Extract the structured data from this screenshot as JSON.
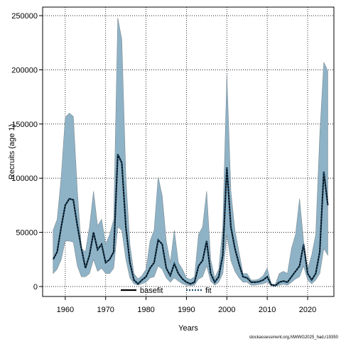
{
  "chart_data": {
    "type": "line",
    "xlabel": "Years",
    "ylabel": "Recruits (age 1)",
    "note": "stockassessment.org,NWWG2025_had,r19350",
    "x": [
      1957,
      1958,
      1959,
      1960,
      1961,
      1962,
      1963,
      1964,
      1965,
      1966,
      1967,
      1968,
      1969,
      1970,
      1971,
      1972,
      1973,
      1974,
      1975,
      1976,
      1977,
      1978,
      1979,
      1980,
      1981,
      1982,
      1983,
      1984,
      1985,
      1986,
      1987,
      1988,
      1989,
      1990,
      1991,
      1992,
      1993,
      1994,
      1995,
      1996,
      1997,
      1998,
      1999,
      2000,
      2001,
      2002,
      2003,
      2004,
      2005,
      2006,
      2007,
      2008,
      2009,
      2010,
      2011,
      2012,
      2013,
      2014,
      2015,
      2016,
      2017,
      2018,
      2019,
      2020,
      2021,
      2022,
      2023,
      2024,
      2025
    ],
    "series": [
      {
        "name": "basefit",
        "color": "#000000",
        "style": "solid",
        "values": [
          25000,
          32000,
          55000,
          75000,
          81000,
          80000,
          56000,
          35000,
          17000,
          29000,
          50000,
          34000,
          39000,
          22000,
          25000,
          32000,
          122000,
          114000,
          55000,
          22000,
          6000,
          2500,
          6000,
          9000,
          17000,
          22000,
          43000,
          39000,
          17000,
          10000,
          21000,
          12000,
          7000,
          4000,
          2500,
          4000,
          19000,
          24000,
          42000,
          12000,
          4000,
          9000,
          29000,
          110000,
          55000,
          35000,
          21000,
          9000,
          8000,
          4000,
          4000,
          4500,
          6000,
          9000,
          1500,
          800,
          4000,
          5000,
          4000,
          9000,
          14000,
          19000,
          39000,
          12000,
          6000,
          12000,
          32000,
          106000,
          75000
        ]
      },
      {
        "name": "fit",
        "color": "#1f4e6e",
        "style": "dotted",
        "band_color": "#8fb3c6",
        "values": [
          25000,
          32000,
          55000,
          75000,
          81000,
          80000,
          56000,
          35000,
          17000,
          29000,
          50000,
          34000,
          39000,
          22000,
          25000,
          32000,
          122000,
          114000,
          55000,
          22000,
          6000,
          2500,
          6000,
          9000,
          17000,
          22000,
          43000,
          39000,
          17000,
          10000,
          21000,
          12000,
          7000,
          4000,
          2500,
          4000,
          19000,
          24000,
          42000,
          12000,
          4000,
          9000,
          29000,
          110000,
          55000,
          35000,
          21000,
          9000,
          8000,
          4000,
          4000,
          4500,
          6000,
          9000,
          1500,
          800,
          4000,
          5000,
          4000,
          9000,
          14000,
          19000,
          39000,
          12000,
          6000,
          12000,
          32000,
          106000,
          75000
        ],
        "upper": [
          52000,
          62000,
          101000,
          156000,
          160000,
          157000,
          88000,
          35000,
          32000,
          55000,
          88000,
          56000,
          62000,
          39000,
          48000,
          62000,
          248000,
          228000,
          101000,
          39000,
          12000,
          7000,
          10000,
          16000,
          42000,
          52000,
          101000,
          84000,
          42000,
          22000,
          52000,
          22000,
          16000,
          8000,
          6500,
          9000,
          48000,
          55000,
          88000,
          25000,
          8000,
          16000,
          55000,
          196000,
          88000,
          52000,
          32000,
          12000,
          12000,
          6000,
          6000,
          7000,
          10000,
          17000,
          2500,
          2000,
          12000,
          14000,
          12000,
          35000,
          48000,
          81000,
          42000,
          16000,
          29000,
          48000,
          140000,
          207000,
          199000
        ],
        "lower": [
          12000,
          16000,
          25000,
          42000,
          42000,
          41000,
          19000,
          9000,
          9000,
          12000,
          25000,
          14000,
          17000,
          12000,
          12000,
          17000,
          55000,
          52000,
          25000,
          8000,
          2500,
          1300,
          2500,
          4000,
          8000,
          9000,
          19000,
          16000,
          8000,
          4000,
          8000,
          5000,
          2500,
          1300,
          700,
          1300,
          7000,
          9000,
          19000,
          5000,
          1300,
          4000,
          12000,
          48000,
          24000,
          14000,
          8000,
          4000,
          4000,
          1300,
          1300,
          2000,
          2500,
          4000,
          700,
          300,
          1300,
          2000,
          1300,
          4000,
          7000,
          9000,
          19000,
          6000,
          2500,
          6000,
          12000,
          35000,
          29000
        ]
      }
    ],
    "xlim": [
      1954.4,
      2026.5
    ],
    "xticks": [
      1960,
      1970,
      1980,
      1990,
      2000,
      2010,
      2020
    ],
    "ylim": [
      -9200,
      257900
    ],
    "yticks": [
      0,
      50000,
      100000,
      150000,
      200000,
      250000
    ],
    "grid": true,
    "legend": "bottom"
  }
}
